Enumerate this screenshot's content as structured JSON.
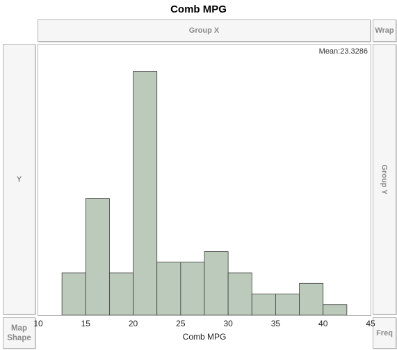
{
  "title": "Comb MPG",
  "zones": {
    "group_x": "Group X",
    "wrap": "Wrap",
    "y": "Y",
    "group_y": "Group Y",
    "map_shape_line1": "Map",
    "map_shape_line2": "Shape",
    "freq": "Freq"
  },
  "colors": {
    "bar_fill": "#bccabb",
    "bar_stroke": "#3a3a3a"
  },
  "chart_data": {
    "type": "bar",
    "subtype": "histogram",
    "title": "Comb MPG",
    "xlabel": "Comb MPG",
    "ylabel": "",
    "annotation": "Mean:23.3286",
    "xlim": [
      10,
      45
    ],
    "x_ticks": [
      "10",
      "15",
      "20",
      "25",
      "30",
      "35",
      "40",
      "45"
    ],
    "bin_edges": [
      12.5,
      15,
      17.5,
      20,
      22.5,
      25,
      27.5,
      30,
      32.5,
      35,
      37.5,
      40,
      42.5
    ],
    "values": [
      4,
      11,
      4,
      23,
      5,
      5,
      6,
      4,
      2,
      2,
      3,
      1
    ],
    "ylim": [
      0,
      25
    ],
    "grid": false
  }
}
